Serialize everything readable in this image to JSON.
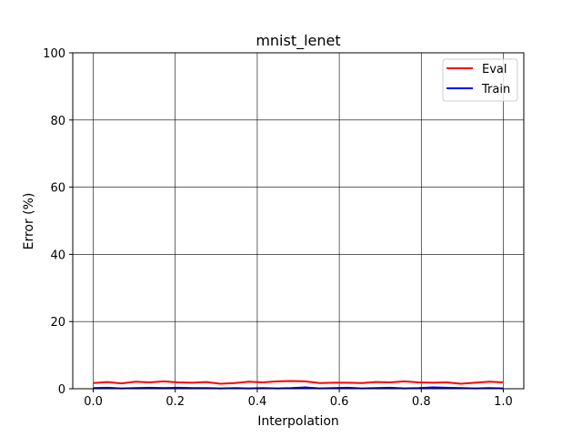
{
  "chart_data": {
    "type": "line",
    "title": "mnist_lenet",
    "xlabel": "Interpolation",
    "ylabel": "Error (%)",
    "xlim": [
      -0.05,
      1.05
    ],
    "ylim": [
      0,
      100
    ],
    "xticks": [
      0.0,
      0.2,
      0.4,
      0.6,
      0.8,
      1.0
    ],
    "xtick_labels": [
      "0.0",
      "0.2",
      "0.4",
      "0.6",
      "0.8",
      "1.0"
    ],
    "yticks": [
      0,
      20,
      40,
      60,
      80,
      100
    ],
    "ytick_labels": [
      "0",
      "20",
      "40",
      "60",
      "80",
      "100"
    ],
    "grid": true,
    "legend_position": "top-right",
    "x": [
      0.0,
      0.034,
      0.069,
      0.103,
      0.138,
      0.172,
      0.207,
      0.241,
      0.276,
      0.31,
      0.345,
      0.379,
      0.414,
      0.448,
      0.483,
      0.517,
      0.552,
      0.586,
      0.621,
      0.655,
      0.69,
      0.724,
      0.759,
      0.793,
      0.828,
      0.862,
      0.897,
      0.931,
      0.966,
      1.0
    ],
    "series": [
      {
        "name": "Eval",
        "color": "#ff0000",
        "values": [
          1.7,
          2.0,
          1.6,
          2.1,
          1.9,
          2.2,
          1.9,
          1.8,
          2.0,
          1.5,
          1.7,
          2.1,
          1.9,
          2.2,
          2.3,
          2.2,
          1.7,
          1.8,
          1.8,
          1.7,
          2.0,
          1.9,
          2.2,
          1.9,
          1.8,
          1.9,
          1.5,
          1.8,
          2.1,
          1.9
        ]
      },
      {
        "name": "Train",
        "color": "#0000ff",
        "values": [
          0.2,
          0.3,
          0.1,
          0.2,
          0.3,
          0.2,
          0.3,
          0.2,
          0.2,
          0.1,
          0.2,
          0.1,
          0.2,
          0.1,
          0.2,
          0.4,
          0.1,
          0.2,
          0.3,
          0.1,
          0.2,
          0.3,
          0.1,
          0.2,
          0.4,
          0.3,
          0.2,
          0.1,
          0.2,
          0.1
        ]
      }
    ]
  }
}
